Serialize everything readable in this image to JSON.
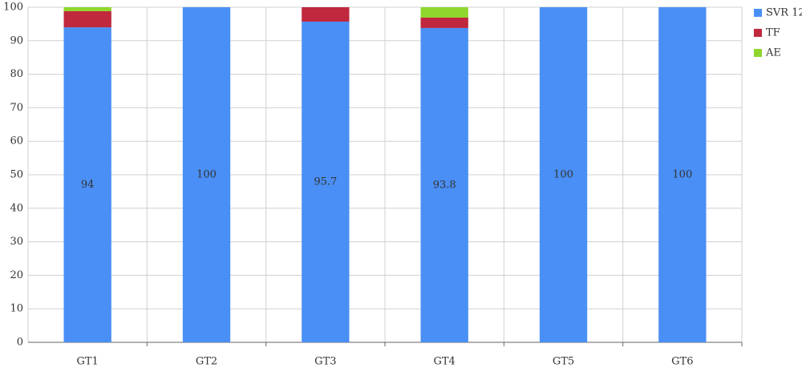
{
  "chart_data": {
    "type": "stacked-bar",
    "categories": [
      "GT1",
      "GT2",
      "GT3",
      "GT4",
      "GT5",
      "GT6"
    ],
    "series": [
      {
        "name": "SVR 12",
        "color": "#4a8ff5",
        "values": [
          94,
          100,
          95.7,
          93.8,
          100,
          100
        ]
      },
      {
        "name": "TF",
        "color": "#c0283e",
        "values": [
          4.8,
          0,
          4.3,
          3.1,
          0,
          0
        ]
      },
      {
        "name": "AE",
        "color": "#8fd62e",
        "values": [
          1.2,
          0,
          0,
          3.1,
          0,
          0
        ]
      }
    ],
    "data_labels_series": 0,
    "ylim": [
      0,
      100
    ],
    "yticks": [
      0,
      10,
      20,
      30,
      40,
      50,
      60,
      70,
      80,
      90,
      100
    ],
    "grid": true,
    "legend": "right"
  }
}
